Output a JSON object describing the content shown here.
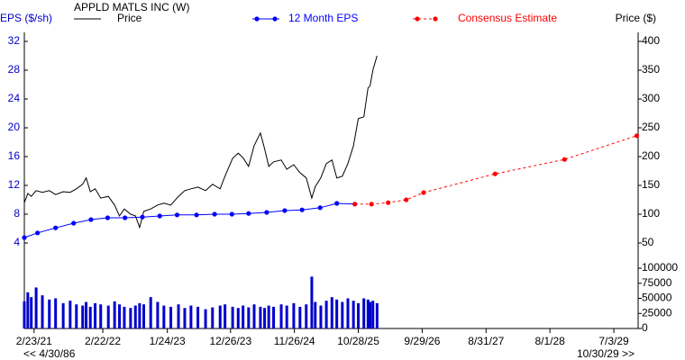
{
  "chart_data": {
    "type": "line",
    "title": "APPLD MATLS INC (W)",
    "y_label": "EPS ($/sh)",
    "y2_label": "Price ($)",
    "range_start_label": "<< 4/30/86",
    "range_end_label": "10/30/29 >>",
    "xlim": [
      2021.01,
      2029.85
    ],
    "xticks": [
      {
        "value": 2021.15,
        "label": "2/23/21"
      },
      {
        "value": 2022.14,
        "label": "2/22/22"
      },
      {
        "value": 2023.07,
        "label": "1/24/23"
      },
      {
        "value": 2023.98,
        "label": "12/26/23"
      },
      {
        "value": 2024.9,
        "label": "11/26/24"
      },
      {
        "value": 2025.82,
        "label": "10/28/25"
      },
      {
        "value": 2026.74,
        "label": "9/29/26"
      },
      {
        "value": 2027.66,
        "label": "8/31/27"
      },
      {
        "value": 2028.58,
        "label": "8/1/28"
      },
      {
        "value": 2029.5,
        "label": "7/3/29"
      }
    ],
    "ylim": [
      0,
      32
    ],
    "yticks": [
      4,
      8,
      12,
      16,
      20,
      24,
      28,
      32
    ],
    "y2lim": [
      0,
      400
    ],
    "y2ticks": [
      50,
      100,
      150,
      200,
      250,
      300,
      350,
      400
    ],
    "volume_lim": [
      0,
      100000
    ],
    "volume_ticks": [
      0,
      25000,
      50000,
      75000,
      100000
    ],
    "series": [
      {
        "name": "Price",
        "color": "#000000",
        "axis": "y2",
        "style": "solid",
        "markers": false,
        "x": [
          2021.01,
          2021.06,
          2021.11,
          2021.18,
          2021.27,
          2021.37,
          2021.46,
          2021.57,
          2021.67,
          2021.76,
          2021.85,
          2021.9,
          2021.96,
          2022.03,
          2022.11,
          2022.22,
          2022.31,
          2022.38,
          2022.45,
          2022.54,
          2022.61,
          2022.67,
          2022.73,
          2022.83,
          2022.93,
          2023.02,
          2023.12,
          2023.23,
          2023.32,
          2023.41,
          2023.51,
          2023.62,
          2023.72,
          2023.83,
          2023.9,
          2024.01,
          2024.09,
          2024.16,
          2024.24,
          2024.32,
          2024.41,
          2024.47,
          2024.53,
          2024.6,
          2024.71,
          2024.79,
          2024.89,
          2024.98,
          2025.07,
          2025.15,
          2025.2,
          2025.28,
          2025.36,
          2025.44,
          2025.51,
          2025.59,
          2025.67,
          2025.75,
          2025.82,
          2025.9,
          2025.96,
          2025.99,
          2026.03,
          2026.09
        ],
        "values": [
          120,
          136,
          131,
          141,
          138,
          141,
          134,
          139,
          138,
          144,
          152,
          163,
          139,
          144,
          128,
          131,
          116,
          97,
          109,
          100,
          97,
          77,
          105,
          109,
          116,
          119,
          116,
          131,
          141,
          144,
          147,
          141,
          152,
          144,
          166,
          197,
          206,
          198,
          183,
          219,
          241,
          214,
          183,
          191,
          194,
          178,
          186,
          172,
          163,
          128,
          148,
          163,
          188,
          194,
          163,
          166,
          188,
          219,
          266,
          269,
          319,
          323,
          350,
          375
        ],
        "volume": [
          45000,
          60000,
          52000,
          68000,
          55000,
          48000,
          50000,
          42000,
          46000,
          40000,
          38000,
          44000,
          36000,
          42000,
          40000,
          38000,
          45000,
          40000,
          36000,
          34000,
          38000,
          42000,
          40000,
          52000,
          44000,
          38000,
          36000,
          40000,
          34000,
          38000,
          36000,
          32000,
          35000,
          38000,
          40000,
          36000,
          34000,
          38000,
          35000,
          40000,
          36000,
          34000,
          38000,
          36000,
          40000,
          38000,
          42000,
          36000,
          40000,
          86000,
          44000,
          38000,
          46000,
          52000,
          48000,
          44000,
          50000,
          46000,
          42000,
          50000,
          48000,
          44000,
          46000,
          42000
        ],
        "volume_color": "#0000cc"
      },
      {
        "name": "12 Month EPS",
        "color": "#0000ff",
        "axis": "y",
        "style": "solid",
        "markers": true,
        "x": [
          2021.01,
          2021.2,
          2021.46,
          2021.72,
          2021.97,
          2022.21,
          2022.46,
          2022.71,
          2022.96,
          2023.21,
          2023.49,
          2023.75,
          2024.0,
          2024.24,
          2024.5,
          2024.76,
          2025.01,
          2025.27,
          2025.51,
          2025.77
        ],
        "values": [
          4.75,
          5.4,
          6.1,
          6.75,
          7.25,
          7.5,
          7.5,
          7.6,
          7.75,
          7.9,
          7.9,
          8.0,
          8.0,
          8.1,
          8.25,
          8.5,
          8.6,
          8.9,
          9.5,
          9.4
        ]
      },
      {
        "name": "Consensus Estimate",
        "color": "#ff0000",
        "axis": "y",
        "style": "dashed",
        "markers": true,
        "x": [
          2025.77,
          2026.01,
          2026.25,
          2026.51,
          2026.76,
          2027.79,
          2028.79,
          2029.83
        ],
        "values": [
          9.4,
          9.4,
          9.6,
          10.0,
          11.0,
          13.6,
          15.6,
          18.9
        ]
      }
    ]
  }
}
